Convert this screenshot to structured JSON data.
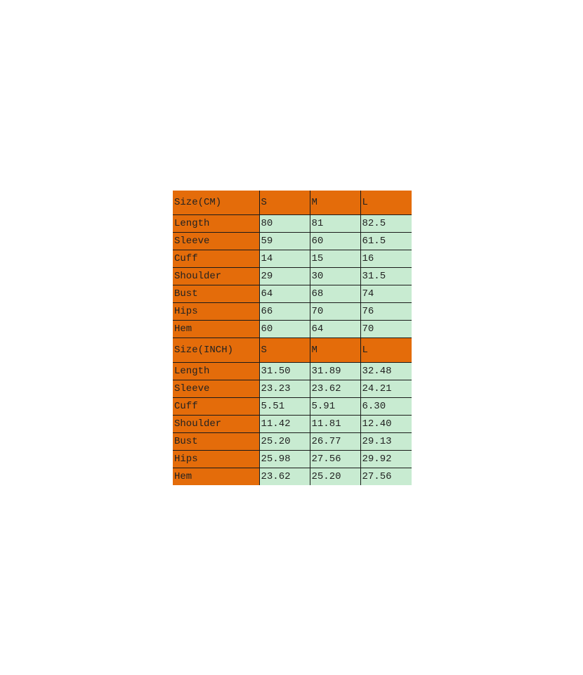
{
  "colors": {
    "header": "#E46C0A",
    "cell": "#C8EBD1"
  },
  "tables": [
    {
      "header": [
        "Size(CM)",
        "S",
        "M",
        "L"
      ],
      "rows": [
        [
          "Length",
          "80",
          "81",
          "82.5"
        ],
        [
          "Sleeve",
          "59",
          "60",
          "61.5"
        ],
        [
          "Cuff",
          "14",
          "15",
          "16"
        ],
        [
          "Shoulder",
          "29",
          "30",
          "31.5"
        ],
        [
          "Bust",
          "64",
          "68",
          "74"
        ],
        [
          "Hips",
          "66",
          "70",
          "76"
        ],
        [
          "Hem",
          "60",
          "64",
          "70"
        ]
      ]
    },
    {
      "header": [
        "Size(INCH)",
        "S",
        "M",
        "L"
      ],
      "rows": [
        [
          "Length",
          "31.50",
          "31.89",
          "32.48"
        ],
        [
          "Sleeve",
          "23.23",
          "23.62",
          "24.21"
        ],
        [
          "Cuff",
          "5.51",
          "5.91",
          "6.30"
        ],
        [
          "Shoulder",
          "11.42",
          "11.81",
          "12.40"
        ],
        [
          "Bust",
          "25.20",
          "26.77",
          "29.13"
        ],
        [
          "Hips",
          "25.98",
          "27.56",
          "29.92"
        ],
        [
          "Hem",
          "23.62",
          "25.20",
          "27.56"
        ]
      ]
    }
  ]
}
